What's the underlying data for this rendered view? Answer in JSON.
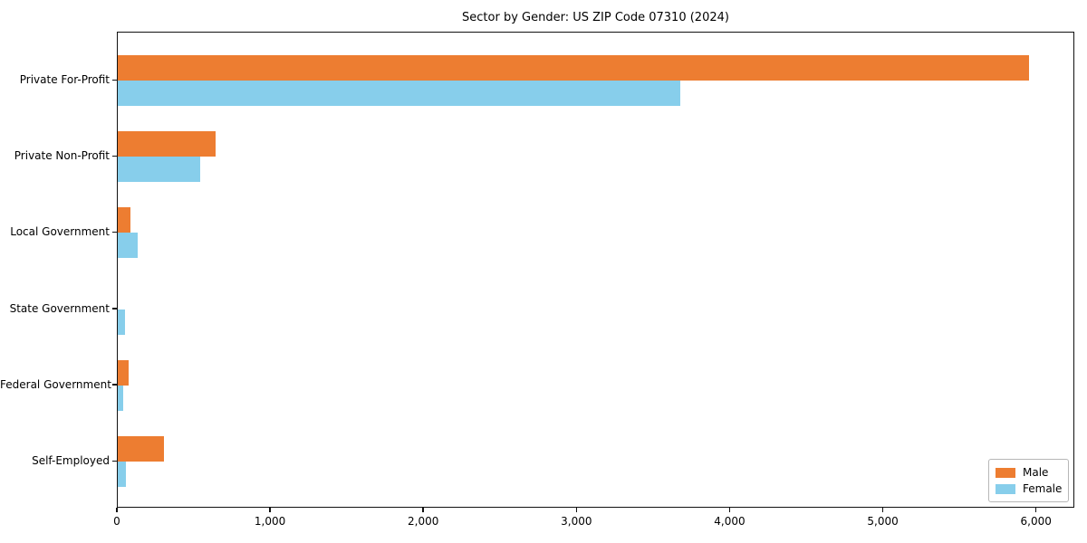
{
  "chart_data": {
    "type": "bar",
    "orientation": "horizontal",
    "title": "Sector by Gender: US ZIP Code 07310 (2024)",
    "categories": [
      "Private For-Profit",
      "Private Non-Profit",
      "Local Government",
      "State Government",
      "Federal Government",
      "Self-Employed"
    ],
    "series": [
      {
        "name": "Male",
        "color": "#ED7D31",
        "values": [
          5950,
          640,
          85,
          0,
          70,
          300
        ]
      },
      {
        "name": "Female",
        "color": "#87CEEB",
        "values": [
          3670,
          535,
          130,
          45,
          35,
          55
        ]
      }
    ],
    "xlabel": "",
    "ylabel": "",
    "xlim": [
      0,
      6250
    ],
    "x_ticks": [
      {
        "value": 0,
        "label": "0"
      },
      {
        "value": 1000,
        "label": "1,000"
      },
      {
        "value": 2000,
        "label": "2,000"
      },
      {
        "value": 3000,
        "label": "3,000"
      },
      {
        "value": 4000,
        "label": "4,000"
      },
      {
        "value": 5000,
        "label": "5,000"
      },
      {
        "value": 6000,
        "label": "6,000"
      }
    ],
    "grid": false,
    "legend_position": "lower right",
    "axis_color": "#111111",
    "background_color": "#ffffff"
  }
}
